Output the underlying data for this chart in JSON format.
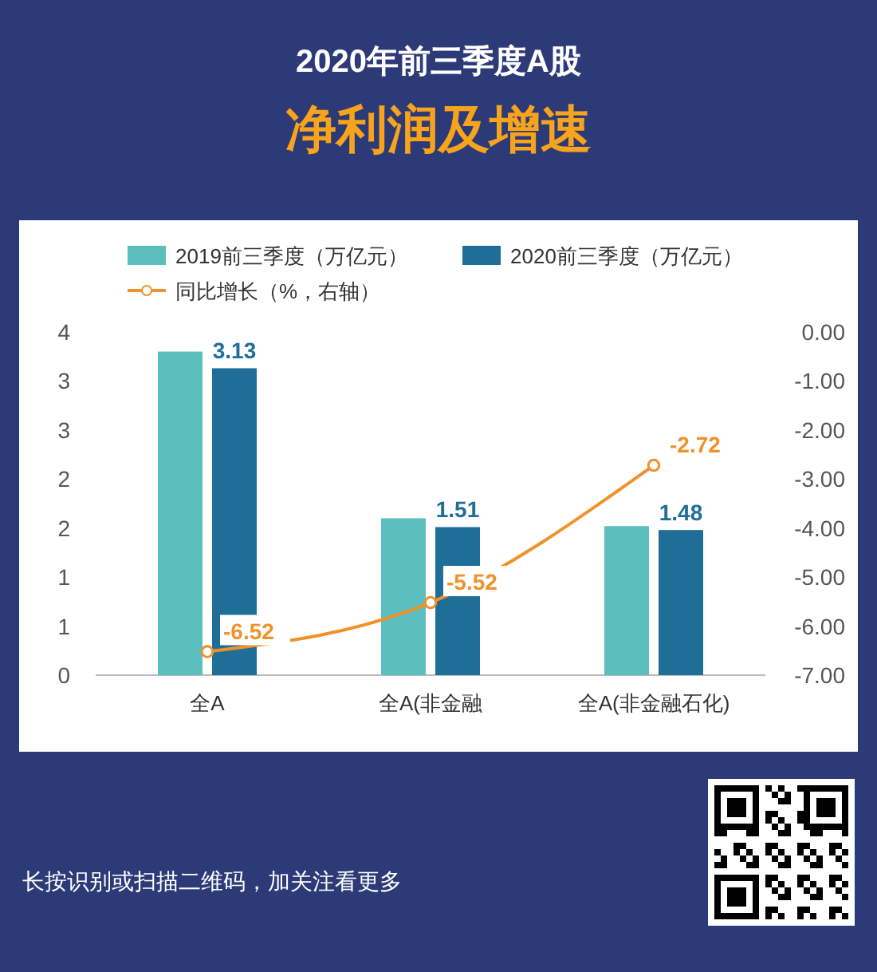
{
  "chart_data": {
    "type": "bar",
    "title": "2020年前三季度A股",
    "subtitle": "净利润及增速",
    "categories": [
      "全A",
      "全A(非金融",
      "全A(非金融石化)"
    ],
    "series": [
      {
        "name": "2019前三季度（万亿元）",
        "color": "#5bbfbf",
        "values": [
          3.3,
          1.6,
          1.52
        ]
      },
      {
        "name": "2020前三季度（万亿元）",
        "color": "#1f6e97",
        "values": [
          3.13,
          1.51,
          1.48
        ],
        "value_labels": [
          "3.13",
          "1.51",
          "1.48"
        ]
      },
      {
        "name": "同比增长（%，右轴）",
        "type": "line",
        "axis": "y2",
        "color": "#f0922b",
        "marker": "circle",
        "values": [
          -6.52,
          -5.52,
          -2.72
        ],
        "value_labels": [
          "-6.52",
          "-5.52",
          "-2.72"
        ]
      }
    ],
    "ylim": [
      0,
      3.5
    ],
    "yticks": [
      {
        "value": 0,
        "label": "0"
      },
      {
        "value": 0.5,
        "label": "1"
      },
      {
        "value": 1,
        "label": "1"
      },
      {
        "value": 1.5,
        "label": "2"
      },
      {
        "value": 2,
        "label": "2"
      },
      {
        "value": 2.5,
        "label": "3"
      },
      {
        "value": 3,
        "label": "3"
      },
      {
        "value": 3.5,
        "label": "4"
      }
    ],
    "y2lim": [
      -7,
      0
    ],
    "y2ticks": [
      {
        "value": -7,
        "label": "-7.00"
      },
      {
        "value": -6,
        "label": "-6.00"
      },
      {
        "value": -5,
        "label": "-5.00"
      },
      {
        "value": -4,
        "label": "-4.00"
      },
      {
        "value": -3,
        "label": "-3.00"
      },
      {
        "value": -2,
        "label": "-2.00"
      },
      {
        "value": -1,
        "label": "-1.00"
      },
      {
        "value": 0,
        "label": "0.00"
      }
    ],
    "legend": "top",
    "annotations": [
      "长按识别或扫描二维码，加关注看更多"
    ]
  }
}
